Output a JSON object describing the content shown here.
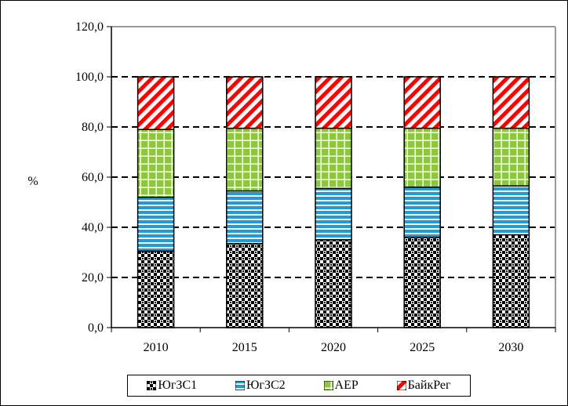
{
  "chart_data": {
    "type": "bar",
    "stacked": true,
    "categories": [
      "2010",
      "2015",
      "2020",
      "2025",
      "2030"
    ],
    "ylabel": "%",
    "ylim": [
      0,
      120
    ],
    "yticks": [
      "0,0",
      "20,0",
      "40,0",
      "60,0",
      "80,0",
      "100,0",
      "120,0"
    ],
    "grid": "dashed horizontal",
    "legend_position": "bottom",
    "series": [
      {
        "name": "ЮгЗС1",
        "values": [
          30.5,
          33.5,
          35.0,
          36.0,
          37.0
        ],
        "color": "#000000",
        "pattern": "checker"
      },
      {
        "name": "ЮгЗС2",
        "values": [
          21.5,
          21.0,
          20.5,
          20.0,
          19.5
        ],
        "color": "#1f9bd7",
        "pattern": "horizontal-stripes"
      },
      {
        "name": "АЕР",
        "values": [
          27.0,
          25.0,
          24.0,
          23.5,
          23.0
        ],
        "color": "#8dc63f",
        "pattern": "grid"
      },
      {
        "name": "БайкРег",
        "values": [
          21.0,
          20.5,
          20.5,
          20.5,
          20.5
        ],
        "color": "#ff0000",
        "pattern": "diagonal-stripes"
      }
    ]
  }
}
